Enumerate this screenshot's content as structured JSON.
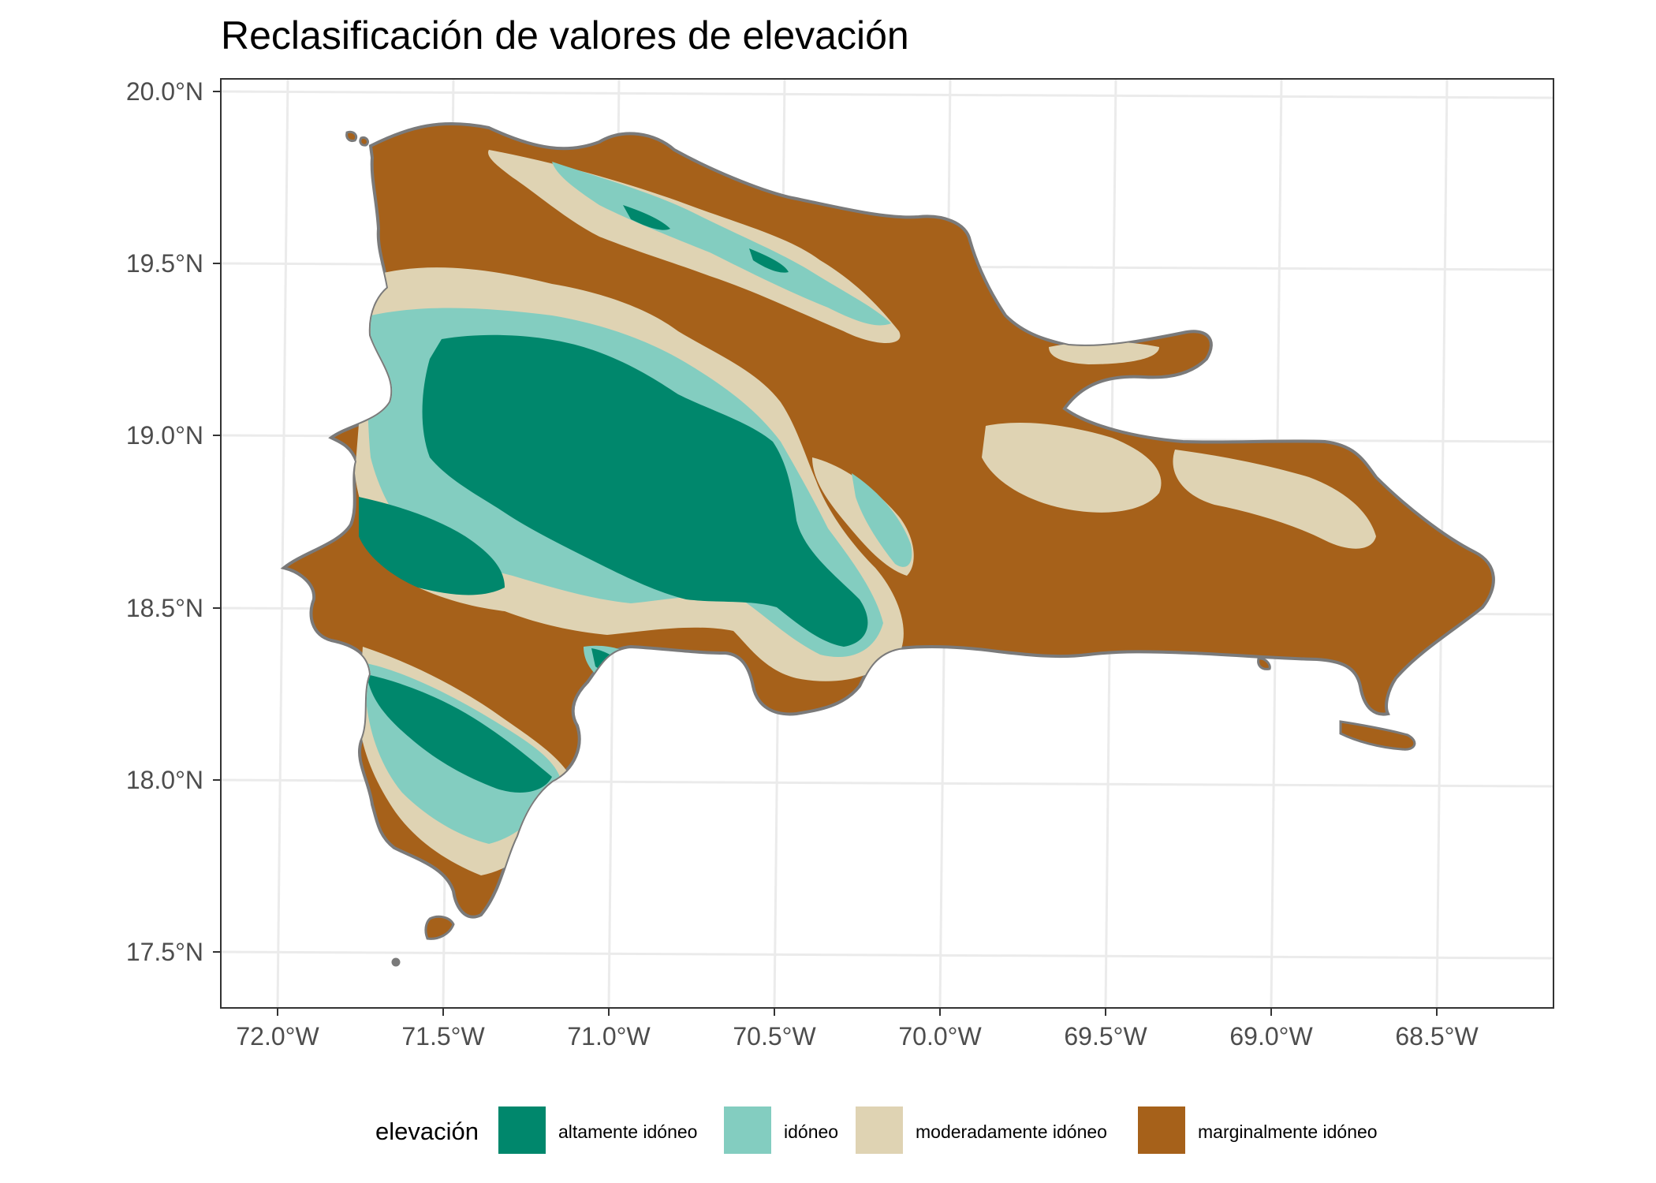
{
  "title": "Reclasificación de valores de elevación",
  "colors": {
    "altamente": "#00876c",
    "idoneo": "#83cdc0",
    "moderadamente": "#dfd3b3",
    "marginalmente": "#a6611a",
    "coastline": "#7a7a7a",
    "grid": "#ebebeb",
    "panel_border": "#333333",
    "tick_text": "#4d4d4d"
  },
  "axes": {
    "x_ticks": [
      "72.0°W",
      "71.5°W",
      "71.0°W",
      "70.5°W",
      "70.0°W",
      "69.5°W",
      "69.0°W",
      "68.5°W"
    ],
    "y_ticks": [
      "20.0°N",
      "19.5°N",
      "19.0°N",
      "18.5°N",
      "18.0°N",
      "17.5°N"
    ]
  },
  "legend": {
    "title": "elevación",
    "items": [
      {
        "label": "altamente idóneo",
        "color": "#00876c"
      },
      {
        "label": "idóneo",
        "color": "#83cdc0"
      },
      {
        "label": "moderadamente idóneo",
        "color": "#dfd3b3"
      },
      {
        "label": "marginalmente idóneo",
        "color": "#a6611a"
      }
    ]
  }
}
